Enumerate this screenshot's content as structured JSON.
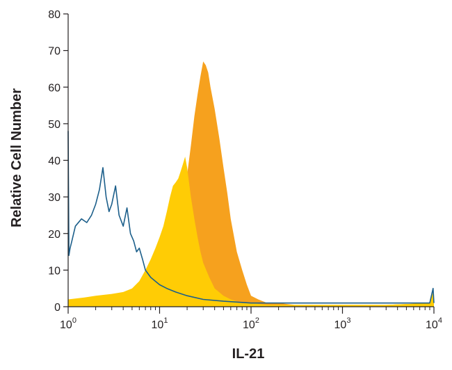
{
  "chart_data": {
    "type": "area",
    "xlabel": "IL-21",
    "ylabel": "Relative Cell Number",
    "x_scale": "log",
    "xlim": [
      1,
      10000
    ],
    "ylim": [
      0,
      80
    ],
    "x_ticks": [
      {
        "value": 1,
        "base": "10",
        "exp": "0"
      },
      {
        "value": 10,
        "base": "10",
        "exp": "1"
      },
      {
        "value": 100,
        "base": "10",
        "exp": "2"
      },
      {
        "value": 1000,
        "base": "10",
        "exp": "3"
      },
      {
        "value": 10000,
        "base": "10",
        "exp": "4"
      }
    ],
    "y_ticks": [
      0,
      10,
      20,
      30,
      40,
      50,
      60,
      70,
      80
    ],
    "grid": false,
    "series": [
      {
        "style": "filled",
        "color": "#f6a11e",
        "x": [
          1,
          1.5,
          2,
          3,
          4,
          5,
          6,
          7,
          8,
          9,
          10,
          12,
          14,
          16,
          18,
          20,
          22,
          24,
          26,
          28,
          30,
          32,
          34,
          36,
          38,
          40,
          45,
          50,
          55,
          60,
          70,
          80,
          90,
          100,
          120,
          150,
          200,
          300,
          500,
          1000,
          3000,
          9000,
          9800,
          10000
        ],
        "y": [
          2,
          2,
          2.5,
          3,
          3.5,
          4,
          5,
          6,
          8,
          10,
          12,
          16,
          20,
          25,
          30,
          36,
          44,
          52,
          58,
          63,
          67,
          66,
          64,
          60,
          57,
          54,
          46,
          38,
          31,
          24,
          15,
          10,
          6,
          3,
          2,
          1,
          1,
          0.5,
          0.5,
          0.5,
          0.5,
          1,
          3,
          1
        ]
      },
      {
        "style": "filled",
        "color": "#ffcc05",
        "x": [
          1,
          1.5,
          2,
          3,
          4,
          5,
          6,
          7,
          8,
          9,
          10,
          11,
          12,
          13,
          14,
          15,
          16,
          17,
          18,
          19,
          20,
          22,
          24,
          26,
          28,
          30,
          35,
          40,
          50,
          60,
          70,
          80,
          100,
          150,
          300,
          1000,
          3000,
          9000,
          9800,
          10000
        ],
        "y": [
          2,
          2.5,
          3,
          3.5,
          4,
          5,
          7,
          10,
          13,
          16,
          19,
          22,
          26,
          30,
          33,
          34,
          35,
          37,
          39,
          41,
          38,
          30,
          24,
          19,
          15,
          12,
          8,
          5,
          3,
          2,
          1.5,
          1,
          1,
          0.5,
          0.5,
          0.5,
          0.5,
          1,
          4,
          1
        ]
      },
      {
        "style": "outline",
        "color": "#1b5e8a",
        "x": [
          1,
          1.02,
          1.05,
          1.1,
          1.2,
          1.4,
          1.6,
          1.8,
          2.0,
          2.2,
          2.4,
          2.6,
          2.8,
          3.0,
          3.3,
          3.6,
          4.0,
          4.4,
          4.8,
          5.2,
          5.6,
          6.0,
          6.5,
          7.0,
          8,
          10,
          12,
          15,
          20,
          30,
          50,
          100,
          200,
          500,
          1000,
          3000,
          9000,
          9800,
          10000
        ],
        "y": [
          48,
          14,
          16,
          18,
          22,
          24,
          23,
          25,
          28,
          32,
          38,
          30,
          26,
          28,
          33,
          25,
          22,
          27,
          20,
          18,
          15,
          16,
          13,
          10,
          8,
          6,
          5,
          4,
          3,
          2,
          1.5,
          1,
          1,
          1,
          1,
          1,
          1,
          5,
          1
        ]
      }
    ]
  }
}
